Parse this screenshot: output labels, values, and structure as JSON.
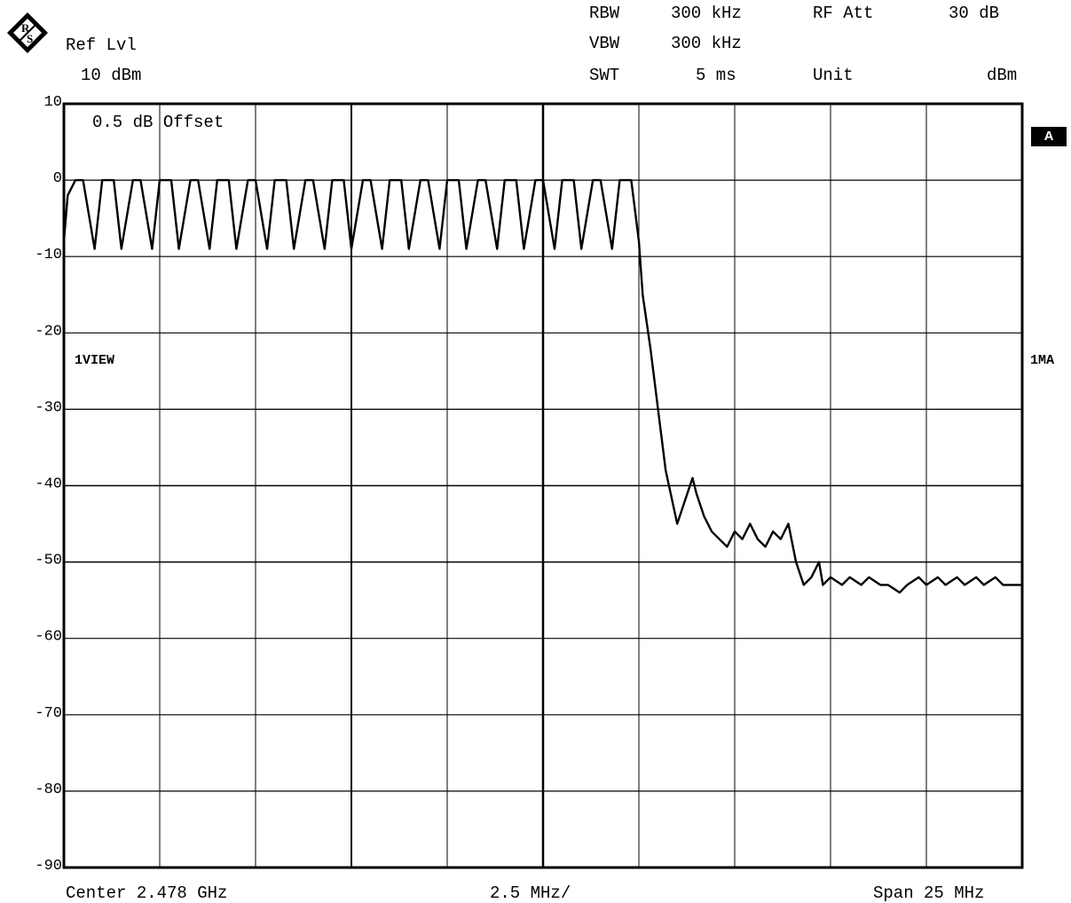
{
  "header": {
    "ref_lvl_label": "Ref Lvl",
    "ref_lvl_value": "10 dBm",
    "rbw_label": "RBW",
    "rbw_value": "300 kHz",
    "vbw_label": "VBW",
    "vbw_value": "300 kHz",
    "swt_label": "SWT",
    "swt_value": "5 ms",
    "rf_att_label": "RF Att",
    "rf_att_value": "30 dB",
    "unit_label": "Unit",
    "unit_value": "dBm"
  },
  "annotations": {
    "offset": "0.5 dB Offset",
    "trace_view": "1VIEW",
    "trace_mode": "1MA",
    "screen_badge": "A"
  },
  "footer": {
    "center": "Center 2.478 GHz",
    "per_div": "2.5 MHz/",
    "span": "Span 25 MHz"
  },
  "colors": {
    "trace": "#000000",
    "grid": "#000000",
    "background": "#ffffff"
  },
  "chart_data": {
    "type": "line",
    "title": "",
    "xlabel": "",
    "ylabel": "",
    "xlim": [
      2465.5,
      2490.5
    ],
    "ylim": [
      -90,
      10
    ],
    "x_unit": "MHz",
    "y_unit": "dBm",
    "grid": true,
    "y_ticks": [
      "10",
      "0",
      "-10",
      "-20",
      "-30",
      "-40",
      "-50",
      "-60",
      "-70",
      "-80",
      "-90"
    ],
    "y_tick_values": [
      10,
      0,
      -10,
      -20,
      -30,
      -40,
      -50,
      -60,
      -70,
      -80,
      -90
    ],
    "x_divisions": 10,
    "series": [
      {
        "x": [
          2465.5,
          2465.6,
          2465.8,
          2466.0,
          2466.3,
          2466.5,
          2466.8,
          2467.0,
          2467.3,
          2467.5,
          2467.8,
          2468.0,
          2468.3,
          2468.5,
          2468.8,
          2469.0,
          2469.3,
          2469.5,
          2469.8,
          2470.0,
          2470.3,
          2470.5,
          2470.8,
          2471.0,
          2471.3,
          2471.5,
          2471.8,
          2472.0,
          2472.3,
          2472.5,
          2472.8,
          2473.0,
          2473.3,
          2473.5,
          2473.8,
          2474.0,
          2474.3,
          2474.5,
          2474.8,
          2475.0,
          2475.3,
          2475.5,
          2475.8,
          2476.0,
          2476.3,
          2476.5,
          2476.8,
          2477.0,
          2477.3,
          2477.5,
          2477.8,
          2478.0,
          2478.3,
          2478.5,
          2478.8,
          2479.0,
          2479.3,
          2479.5,
          2479.8,
          2480.0,
          2480.3,
          2480.5,
          2480.6,
          2480.8,
          2481.0,
          2481.2,
          2481.5,
          2481.7,
          2481.9,
          2482.0,
          2482.2,
          2482.4,
          2482.6,
          2482.8,
          2483.0,
          2483.2,
          2483.4,
          2483.6,
          2483.8,
          2484.0,
          2484.2,
          2484.4,
          2484.6,
          2484.8,
          2485.0,
          2485.2,
          2485.3,
          2485.5,
          2485.8,
          2486.0,
          2486.3,
          2486.5,
          2486.8,
          2487.0,
          2487.3,
          2487.5,
          2487.8,
          2488.0,
          2488.3,
          2488.5,
          2488.8,
          2489.0,
          2489.3,
          2489.5,
          2489.8,
          2490.0,
          2490.3,
          2490.5
        ],
        "y": [
          -8,
          -2,
          0,
          0,
          -9,
          0,
          0,
          -9,
          0,
          0,
          -9,
          0,
          0,
          -9,
          0,
          0,
          -9,
          0,
          0,
          -9,
          0,
          0,
          -9,
          0,
          0,
          -9,
          0,
          0,
          -9,
          0,
          0,
          -9,
          0,
          0,
          -9,
          0,
          0,
          -9,
          0,
          0,
          -9,
          0,
          0,
          -9,
          0,
          0,
          -9,
          0,
          0,
          -9,
          0,
          0,
          -9,
          0,
          0,
          -9,
          0,
          0,
          -9,
          0,
          0,
          -8,
          -15,
          -22,
          -30,
          -38,
          -45,
          -42,
          -39,
          -41,
          -44,
          -46,
          -47,
          -48,
          -46,
          -47,
          -45,
          -47,
          -48,
          -46,
          -47,
          -45,
          -50,
          -53,
          -52,
          -50,
          -53,
          -52,
          -53,
          -52,
          -53,
          -52,
          -53,
          -53,
          -54,
          -53,
          -52,
          -53,
          -52,
          -53,
          -52,
          -53,
          -52,
          -53,
          -52,
          -53,
          -53,
          -53
        ]
      }
    ]
  }
}
